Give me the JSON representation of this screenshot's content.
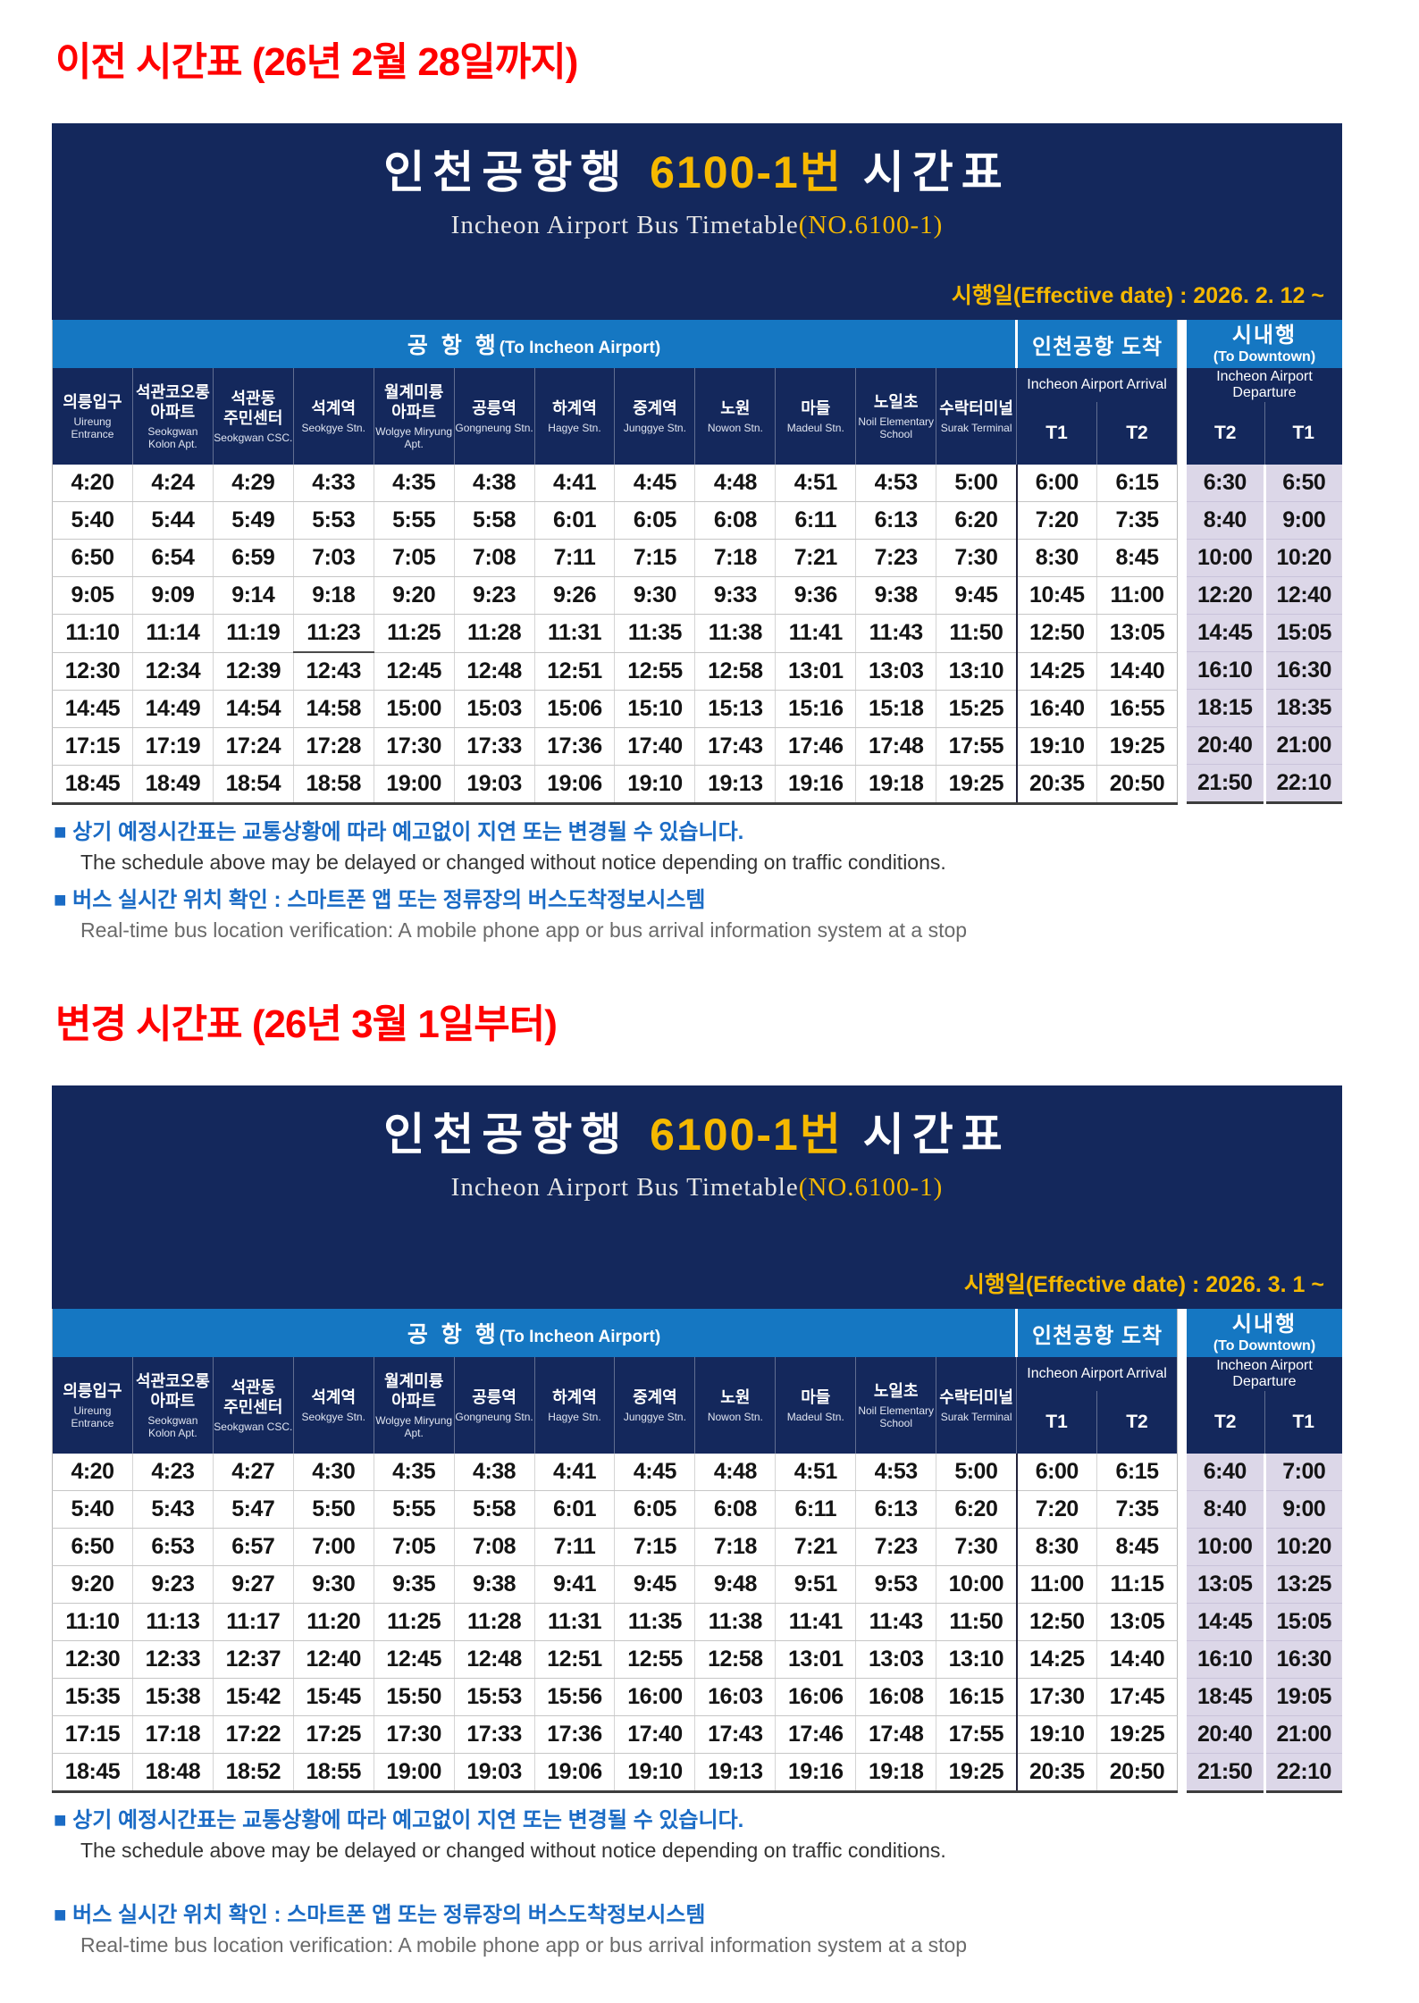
{
  "colors": {
    "navy": "#14285c",
    "blue": "#1577c2",
    "gold": "#f5b800",
    "red_title": "#ff0000",
    "note_blue": "#1a6bc5",
    "downtown_lavender": "#dcd7e8"
  },
  "titles": {
    "old": "이전 시간표 (26년 2월 28일까지)",
    "new": "변경 시간표 (26년 3월 1일부터)"
  },
  "notes": {
    "n1_ko": "■ 상기 예정시간표는 교통상황에 따라 예고없이 지연 또는 변경될 수 있습니다.",
    "n1_en": "The schedule above may be delayed or changed without notice depending on traffic conditions.",
    "n2_ko": "■ 버스 실시간 위치 확인 : 스마트폰 앱 또는 정류장의 버스도착정보시스템",
    "n2_en": "Real-time bus location verification: A mobile phone app or bus arrival information system at a stop"
  },
  "tables": [
    {
      "name": "previous-timetable",
      "header": {
        "title_prefix": "인천공항행",
        "title_number": "6100-1번",
        "title_suffix": "시간표",
        "subtitle_main": "Incheon Airport Bus Timetable",
        "subtitle_no": "(NO.6100-1)",
        "effective": "시행일(Effective date) : 2026. 2. 12 ~"
      },
      "groups": {
        "to_airport": {
          "ko": "공 항 행",
          "en": "(To Incheon Airport)"
        },
        "arrival": {
          "ko": "인천공항 도착",
          "en": "Incheon Airport Arrival"
        },
        "downtown": {
          "ko": "시내행",
          "en": "(To Downtown)",
          "sub": "Incheon Airport Departure"
        }
      },
      "stops": [
        {
          "ko": "의릉입구",
          "en": "Uireung Entrance"
        },
        {
          "ko": "석관코오롱 아파트",
          "en": "Seokgwan Kolon Apt."
        },
        {
          "ko": "석관동 주민센터",
          "en": "Seokgwan CSC."
        },
        {
          "ko": "석계역",
          "en": "Seokgye Stn."
        },
        {
          "ko": "월계미륭 아파트",
          "en": "Wolgye Miryung Apt."
        },
        {
          "ko": "공릉역",
          "en": "Gongneung Stn."
        },
        {
          "ko": "하계역",
          "en": "Hagye Stn."
        },
        {
          "ko": "중계역",
          "en": "Junggye Stn."
        },
        {
          "ko": "노원",
          "en": "Nowon Stn."
        },
        {
          "ko": "마들",
          "en": "Madeul Stn."
        },
        {
          "ko": "노일초",
          "en": "Noil Elementary School"
        },
        {
          "ko": "수락터미널",
          "en": "Surak Terminal"
        }
      ],
      "arrival_cols": [
        "T1",
        "T2"
      ],
      "downtown_cols": [
        "T2",
        "T1"
      ],
      "rows": [
        [
          "4:20",
          "4:24",
          "4:29",
          "4:33",
          "4:35",
          "4:38",
          "4:41",
          "4:45",
          "4:48",
          "4:51",
          "4:53",
          "5:00",
          "6:00",
          "6:15",
          "6:30",
          "6:50"
        ],
        [
          "5:40",
          "5:44",
          "5:49",
          "5:53",
          "5:55",
          "5:58",
          "6:01",
          "6:05",
          "6:08",
          "6:11",
          "6:13",
          "6:20",
          "7:20",
          "7:35",
          "8:40",
          "9:00"
        ],
        [
          "6:50",
          "6:54",
          "6:59",
          "7:03",
          "7:05",
          "7:08",
          "7:11",
          "7:15",
          "7:18",
          "7:21",
          "7:23",
          "7:30",
          "8:30",
          "8:45",
          "10:00",
          "10:20"
        ],
        [
          "9:05",
          "9:09",
          "9:14",
          "9:18",
          "9:20",
          "9:23",
          "9:26",
          "9:30",
          "9:33",
          "9:36",
          "9:38",
          "9:45",
          "10:45",
          "11:00",
          "12:20",
          "12:40"
        ],
        [
          "11:10",
          "11:14",
          "11:19",
          "11:23",
          "11:25",
          "11:28",
          "11:31",
          "11:35",
          "11:38",
          "11:41",
          "11:43",
          "11:50",
          "12:50",
          "13:05",
          "14:45",
          "15:05"
        ],
        [
          "12:30",
          "12:34",
          "12:39",
          "12:43",
          "12:45",
          "12:48",
          "12:51",
          "12:55",
          "12:58",
          "13:01",
          "13:03",
          "13:10",
          "14:25",
          "14:40",
          "16:10",
          "16:30"
        ],
        [
          "14:45",
          "14:49",
          "14:54",
          "14:58",
          "15:00",
          "15:03",
          "15:06",
          "15:10",
          "15:13",
          "15:16",
          "15:18",
          "15:25",
          "16:40",
          "16:55",
          "18:15",
          "18:35"
        ],
        [
          "17:15",
          "17:19",
          "17:24",
          "17:28",
          "17:30",
          "17:33",
          "17:36",
          "17:40",
          "17:43",
          "17:46",
          "17:48",
          "17:55",
          "19:10",
          "19:25",
          "20:40",
          "21:00"
        ],
        [
          "18:45",
          "18:49",
          "18:54",
          "18:58",
          "19:00",
          "19:03",
          "19:06",
          "19:10",
          "19:13",
          "19:16",
          "19:18",
          "19:25",
          "20:35",
          "20:50",
          "21:50",
          "22:10"
        ]
      ]
    },
    {
      "name": "changed-timetable",
      "header": {
        "title_prefix": "인천공항행",
        "title_number": "6100-1번",
        "title_suffix": "시간표",
        "subtitle_main": "Incheon Airport Bus Timetable",
        "subtitle_no": "(NO.6100-1)",
        "effective": "시행일(Effective date) : 2026. 3. 1 ~"
      },
      "groups": {
        "to_airport": {
          "ko": "공 항 행",
          "en": "(To Incheon Airport)"
        },
        "arrival": {
          "ko": "인천공항 도착",
          "en": "Incheon Airport Arrival"
        },
        "downtown": {
          "ko": "시내행",
          "en": "(To Downtown)",
          "sub": "Incheon Airport Departure"
        }
      },
      "stops": [
        {
          "ko": "의릉입구",
          "en": "Uireung Entrance"
        },
        {
          "ko": "석관코오롱 아파트",
          "en": "Seokgwan Kolon Apt."
        },
        {
          "ko": "석관동 주민센터",
          "en": "Seokgwan CSC."
        },
        {
          "ko": "석계역",
          "en": "Seokgye Stn."
        },
        {
          "ko": "월계미륭 아파트",
          "en": "Wolgye Miryung Apt."
        },
        {
          "ko": "공릉역",
          "en": "Gongneung Stn."
        },
        {
          "ko": "하계역",
          "en": "Hagye Stn."
        },
        {
          "ko": "중계역",
          "en": "Junggye Stn."
        },
        {
          "ko": "노원",
          "en": "Nowon Stn."
        },
        {
          "ko": "마들",
          "en": "Madeul Stn."
        },
        {
          "ko": "노일초",
          "en": "Noil Elementary School"
        },
        {
          "ko": "수락터미널",
          "en": "Surak Terminal"
        }
      ],
      "arrival_cols": [
        "T1",
        "T2"
      ],
      "downtown_cols": [
        "T2",
        "T1"
      ],
      "rows": [
        [
          "4:20",
          "4:23",
          "4:27",
          "4:30",
          "4:35",
          "4:38",
          "4:41",
          "4:45",
          "4:48",
          "4:51",
          "4:53",
          "5:00",
          "6:00",
          "6:15",
          "6:40",
          "7:00"
        ],
        [
          "5:40",
          "5:43",
          "5:47",
          "5:50",
          "5:55",
          "5:58",
          "6:01",
          "6:05",
          "6:08",
          "6:11",
          "6:13",
          "6:20",
          "7:20",
          "7:35",
          "8:40",
          "9:00"
        ],
        [
          "6:50",
          "6:53",
          "6:57",
          "7:00",
          "7:05",
          "7:08",
          "7:11",
          "7:15",
          "7:18",
          "7:21",
          "7:23",
          "7:30",
          "8:30",
          "8:45",
          "10:00",
          "10:20"
        ],
        [
          "9:20",
          "9:23",
          "9:27",
          "9:30",
          "9:35",
          "9:38",
          "9:41",
          "9:45",
          "9:48",
          "9:51",
          "9:53",
          "10:00",
          "11:00",
          "11:15",
          "13:05",
          "13:25"
        ],
        [
          "11:10",
          "11:13",
          "11:17",
          "11:20",
          "11:25",
          "11:28",
          "11:31",
          "11:35",
          "11:38",
          "11:41",
          "11:43",
          "11:50",
          "12:50",
          "13:05",
          "14:45",
          "15:05"
        ],
        [
          "12:30",
          "12:33",
          "12:37",
          "12:40",
          "12:45",
          "12:48",
          "12:51",
          "12:55",
          "12:58",
          "13:01",
          "13:03",
          "13:10",
          "14:25",
          "14:40",
          "16:10",
          "16:30"
        ],
        [
          "15:35",
          "15:38",
          "15:42",
          "15:45",
          "15:50",
          "15:53",
          "15:56",
          "16:00",
          "16:03",
          "16:06",
          "16:08",
          "16:15",
          "17:30",
          "17:45",
          "18:45",
          "19:05"
        ],
        [
          "17:15",
          "17:18",
          "17:22",
          "17:25",
          "17:30",
          "17:33",
          "17:36",
          "17:40",
          "17:43",
          "17:46",
          "17:48",
          "17:55",
          "19:10",
          "19:25",
          "20:40",
          "21:00"
        ],
        [
          "18:45",
          "18:48",
          "18:52",
          "18:55",
          "19:00",
          "19:03",
          "19:06",
          "19:10",
          "19:13",
          "19:16",
          "19:18",
          "19:25",
          "20:35",
          "20:50",
          "21:50",
          "22:10"
        ]
      ]
    }
  ]
}
